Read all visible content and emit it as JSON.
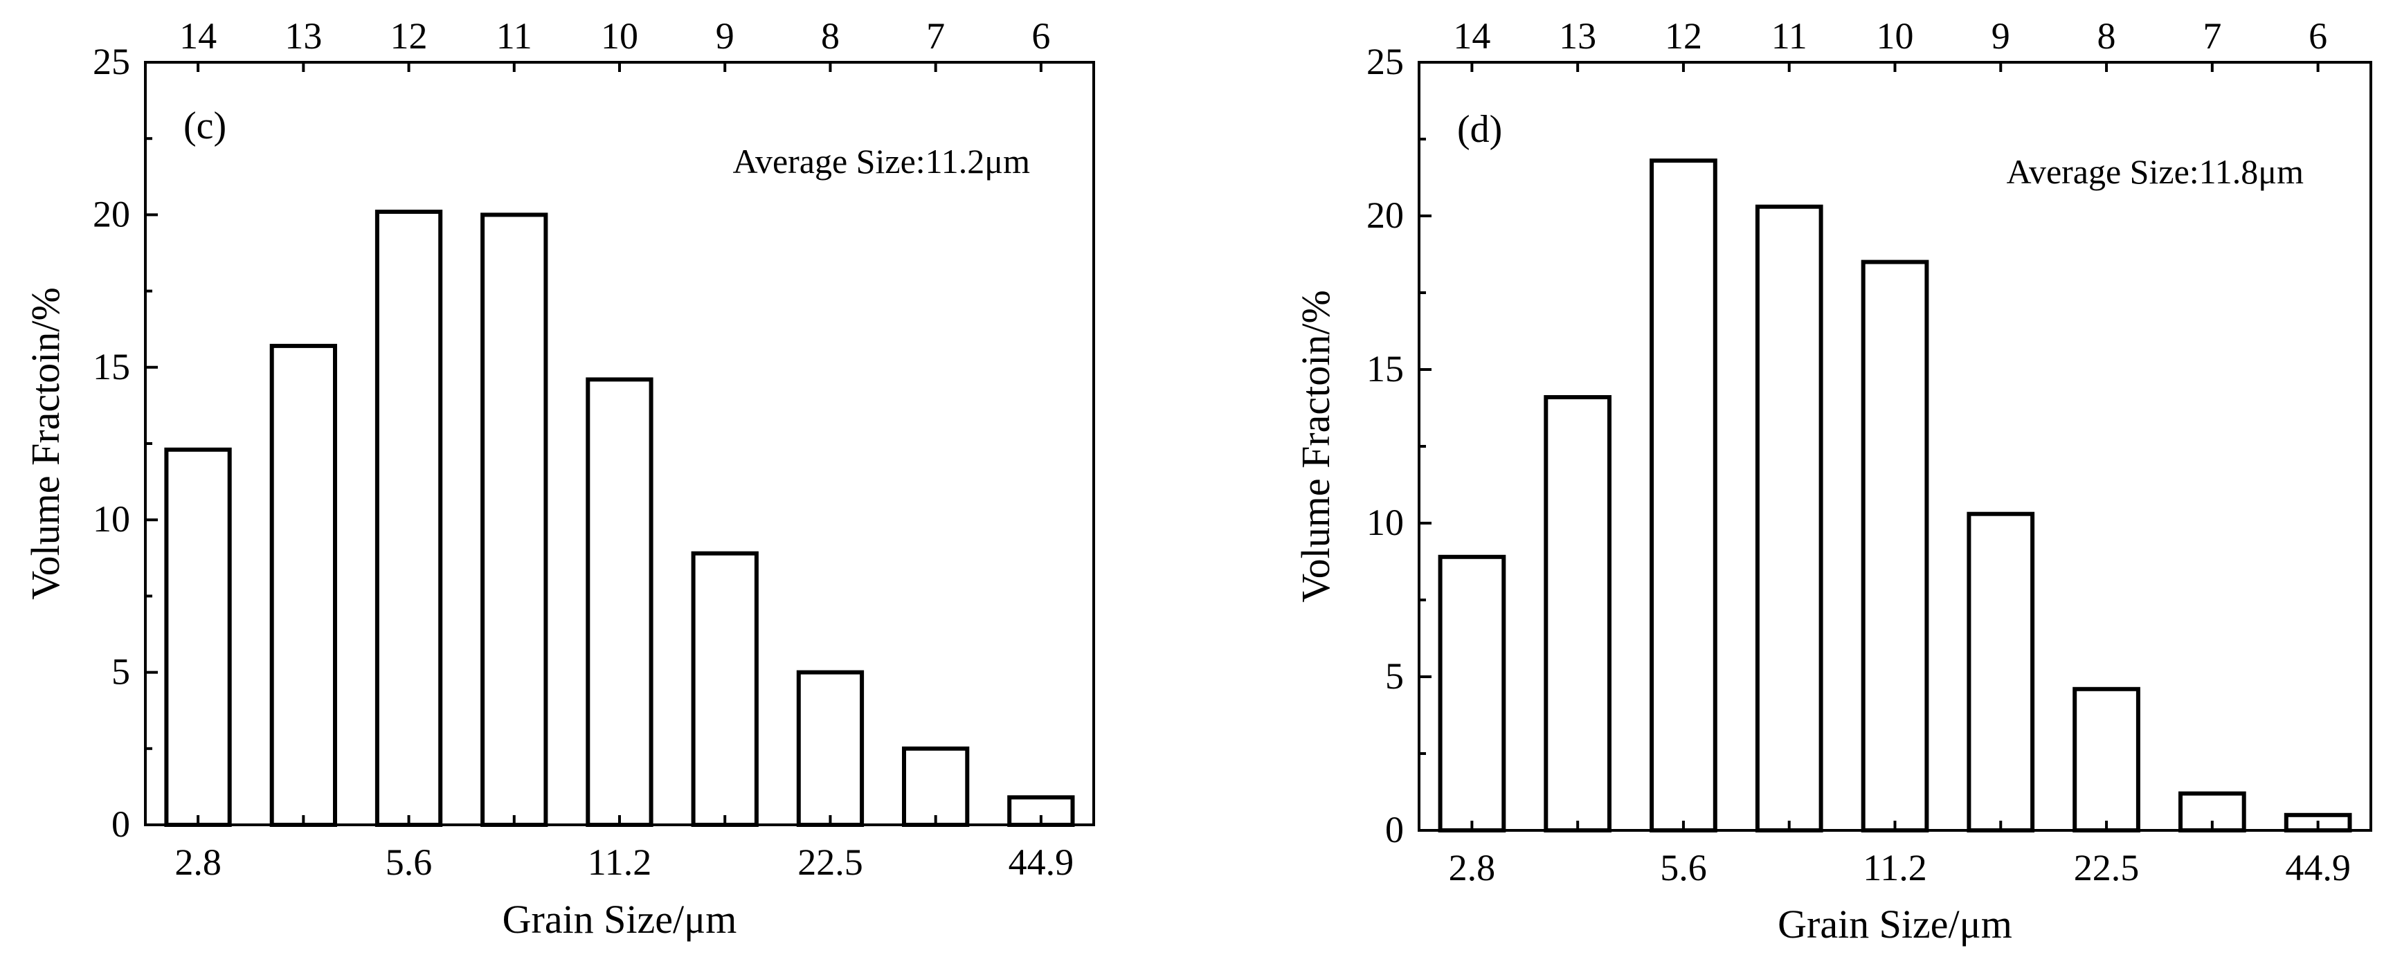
{
  "chart_data": [
    {
      "type": "bar",
      "panel_label": "(c)",
      "annotation": "Average Size:11.2μm",
      "xlabel": "Grain Size/μm",
      "ylabel": "Volume Fractoin/%",
      "ylim": [
        0,
        25
      ],
      "yticks": [
        0,
        5,
        10,
        15,
        20,
        25
      ],
      "bottom_tick_labels": [
        "2.8",
        "5.6",
        "11.2",
        "22.5",
        "44.9"
      ],
      "bottom_tick_bins": [
        0,
        2,
        4,
        6,
        8
      ],
      "top_tick_labels": [
        "14",
        "13",
        "12",
        "11",
        "10",
        "9",
        "8",
        "7",
        "6"
      ],
      "values": [
        12.3,
        15.7,
        20.1,
        20.0,
        14.6,
        8.9,
        5.0,
        2.5,
        0.9
      ]
    },
    {
      "type": "bar",
      "panel_label": "(d)",
      "annotation": "Average Size:11.8μm",
      "xlabel": "Grain Size/μm",
      "ylabel": "Volume Fractoin/%",
      "ylim": [
        0,
        25
      ],
      "yticks": [
        0,
        5,
        10,
        15,
        20,
        25
      ],
      "bottom_tick_labels": [
        "2.8",
        "5.6",
        "11.2",
        "22.5",
        "44.9"
      ],
      "bottom_tick_bins": [
        0,
        2,
        4,
        6,
        8
      ],
      "top_tick_labels": [
        "14",
        "13",
        "12",
        "11",
        "10",
        "9",
        "8",
        "7",
        "6"
      ],
      "values": [
        8.9,
        14.1,
        21.8,
        20.3,
        18.5,
        10.3,
        4.6,
        1.2,
        0.5
      ]
    }
  ]
}
